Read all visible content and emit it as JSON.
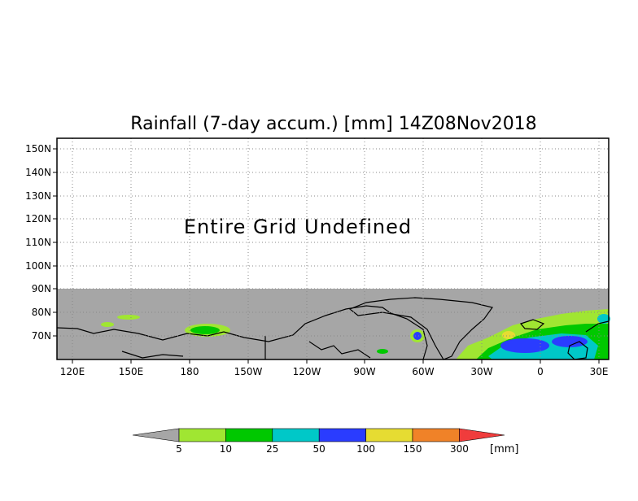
{
  "title": "Rainfall (7-day accum.) [mm] 14Z08Nov2018",
  "notice": "Entire Grid Undefined",
  "lat_labels": [
    "150N",
    "140N",
    "130N",
    "120N",
    "110N",
    "100N",
    "90N",
    "80N",
    "70N"
  ],
  "lon_labels": [
    "120E",
    "150E",
    "180",
    "150W",
    "120W",
    "90W",
    "60W",
    "30W",
    "0",
    "30E"
  ],
  "colorbar": {
    "labels": [
      "5",
      "10",
      "25",
      "50",
      "100",
      "150",
      "300"
    ],
    "unit": "[mm]",
    "colors": [
      "#a6a6a6",
      "#a0e632",
      "#00c800",
      "#00c8c8",
      "#2a3cff",
      "#e6dc32",
      "#f08228",
      "#f03c3c"
    ]
  },
  "colors": {
    "undefined_gray": "#a6a6a6",
    "frame": "#000000",
    "grid": "#888888"
  }
}
